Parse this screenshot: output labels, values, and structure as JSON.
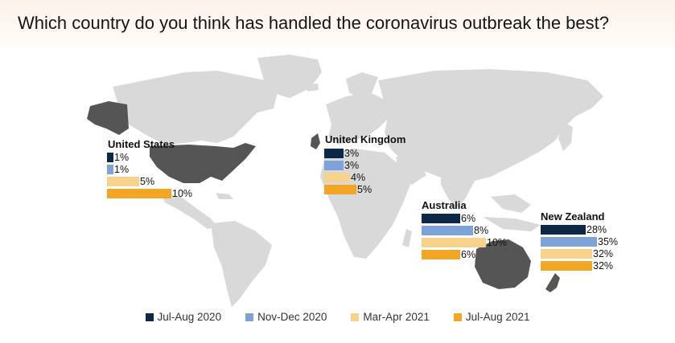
{
  "title": "Which country do you think has handled the coronavirus outbreak the best?",
  "colors": {
    "land": "#d9d9d9",
    "highlight": "#555555",
    "series": [
      "#0d2747",
      "#7ea3d8",
      "#f6d28d",
      "#f2a623"
    ]
  },
  "chart_data": {
    "type": "bar",
    "title": "Which country do you think has handled the coronavirus outbreak the best?",
    "unit": "%",
    "series_names": [
      "Jul-Aug 2020",
      "Nov-Dec 2020",
      "Mar-Apr 2021",
      "Jul-Aug 2021"
    ],
    "countries": [
      {
        "name": "United States",
        "values": [
          1,
          1,
          5,
          10
        ],
        "labels": [
          "1%",
          "1%",
          "5%",
          "10%"
        ]
      },
      {
        "name": "United Kingdom",
        "values": [
          3,
          3,
          4,
          5
        ],
        "labels": [
          "3%",
          "3%",
          "4%",
          "5%"
        ]
      },
      {
        "name": "Australia",
        "values": [
          6,
          8,
          10,
          6
        ],
        "labels": [
          "6%",
          "8%",
          "10%",
          "6%"
        ]
      },
      {
        "name": "New Zealand",
        "values": [
          28,
          35,
          32,
          32
        ],
        "labels": [
          "28%",
          "35%",
          "32%",
          "32%"
        ]
      }
    ]
  },
  "legend": {
    "items": [
      {
        "label": "Jul-Aug 2020",
        "color": "#0d2747"
      },
      {
        "label": "Nov-Dec 2020",
        "color": "#7ea3d8"
      },
      {
        "label": "Mar-Apr 2021",
        "color": "#f6d28d"
      },
      {
        "label": "Jul-Aug 2021",
        "color": "#f2a623"
      }
    ]
  }
}
